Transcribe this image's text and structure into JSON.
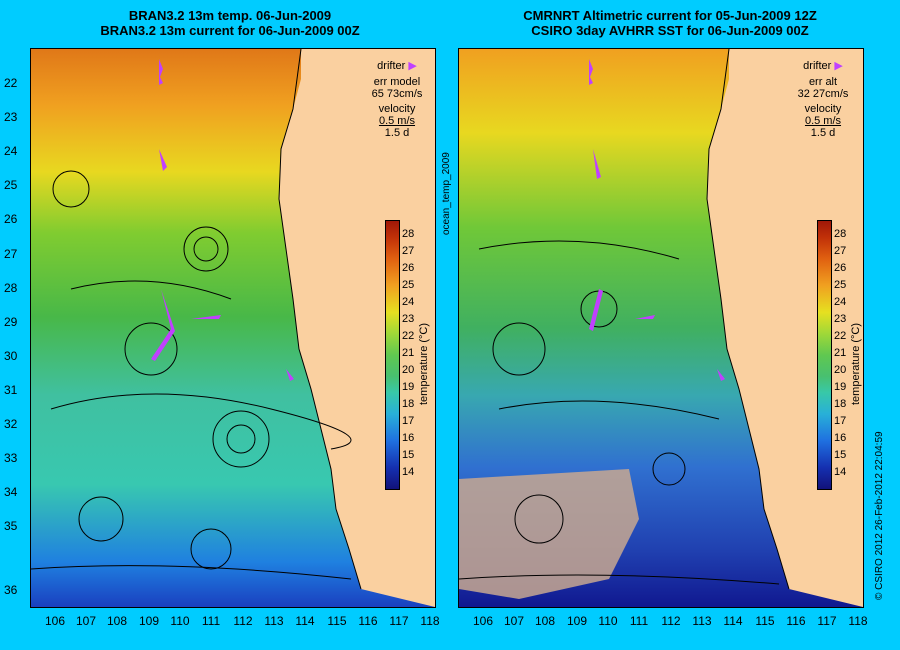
{
  "left": {
    "title1": "BRAN3.2 13m temp. 06-Jun-2009",
    "title2": "BRAN3.2 13m current for 06-Jun-2009 00Z",
    "legend": {
      "drifter": "drifter",
      "err_label": "err model",
      "err_value": "65 73cm/s",
      "velocity": "velocity",
      "speed": "0.5 m/s",
      "days": "1.5 d"
    }
  },
  "right": {
    "title1": "CMRNRT Altimetric current for 05-Jun-2009 12Z",
    "title2": "CSIRO 3day AVHRR SST for 06-Jun-2009 00Z",
    "legend": {
      "drifter": "drifter",
      "err_label": "err alt",
      "err_value": "32 27cm/s",
      "velocity": "velocity",
      "speed": "0.5 m/s",
      "days": "1.5 d"
    }
  },
  "side_label": "ocean_temp_2009",
  "copyright": "© CSIRO 2012   26-Feb-2012 22:04:59",
  "colorbar_unit": "temperature (°C)",
  "colorbar_ticks": [
    "28",
    "27",
    "26",
    "25",
    "24",
    "23",
    "22",
    "21",
    "20",
    "19",
    "18",
    "17",
    "16",
    "15",
    "14"
  ],
  "lat_labels": [
    "22",
    "23",
    "24",
    "25",
    "26",
    "27",
    "28",
    "29",
    "30",
    "31",
    "32",
    "33",
    "34",
    "35",
    "36"
  ],
  "lon_labels": [
    "106",
    "107",
    "108",
    "109",
    "110",
    "111",
    "112",
    "113",
    "114",
    "115",
    "116",
    "117",
    "118"
  ],
  "colors": {
    "background": "#00ccff",
    "land": "#fad0a0",
    "drifter": "#c040ff"
  }
}
